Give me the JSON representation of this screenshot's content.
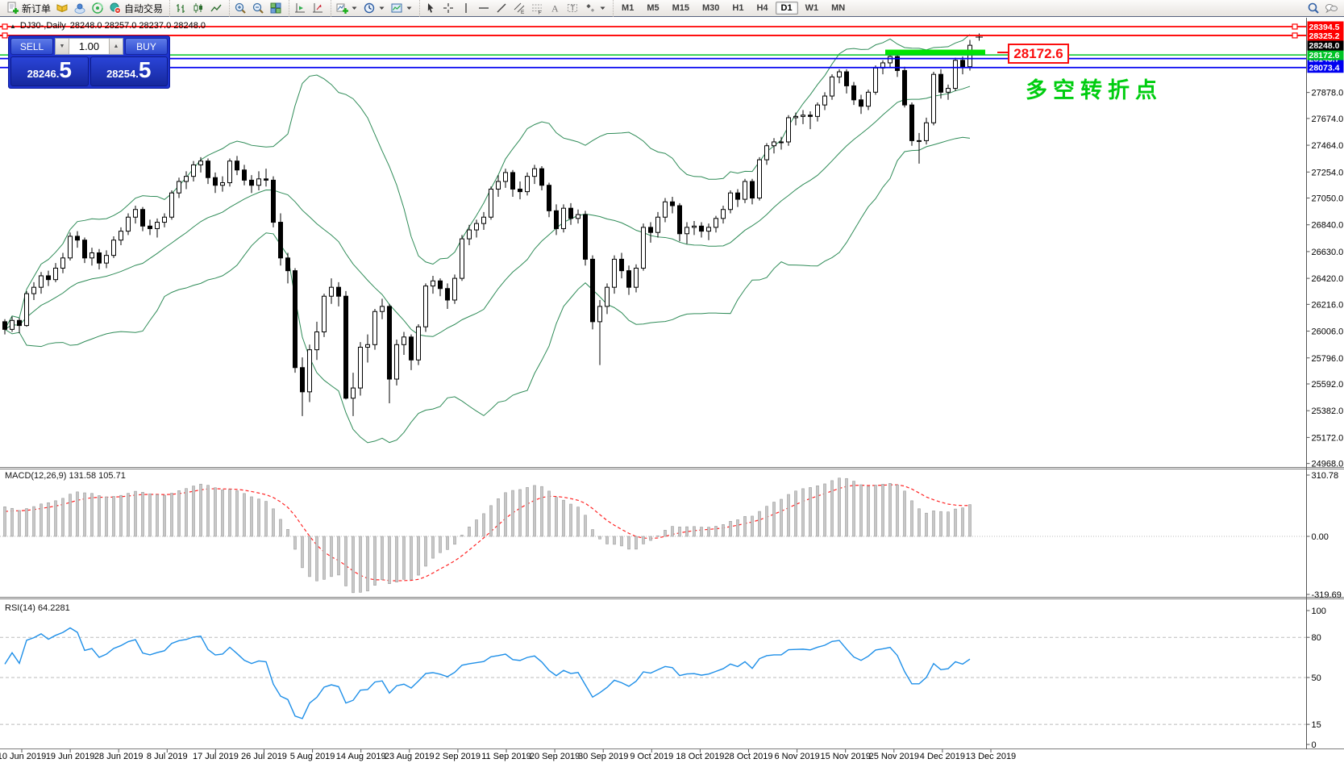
{
  "toolbar": {
    "groups": [
      {
        "name": "trade-group",
        "items": [
          {
            "name": "new-order-button",
            "icon": "new-order",
            "label": "新订单"
          },
          {
            "name": "market-watch-button",
            "icon": "book"
          },
          {
            "name": "profile-button",
            "icon": "cloud-user"
          },
          {
            "name": "signals-button",
            "icon": "radar"
          },
          {
            "name": "autotrading-button",
            "icon": "autotrade",
            "label": "自动交易"
          }
        ]
      },
      {
        "name": "chart-type-group",
        "items": [
          {
            "name": "bar-chart-button",
            "icon": "bar-chart"
          },
          {
            "name": "candle-chart-button",
            "icon": "candle-chart"
          },
          {
            "name": "line-chart-button",
            "icon": "line-chart"
          }
        ]
      },
      {
        "name": "zoom-group",
        "items": [
          {
            "name": "zoom-in-button",
            "icon": "zoom-in"
          },
          {
            "name": "zoom-out-button",
            "icon": "zoom-out"
          },
          {
            "name": "tile-windows-button",
            "icon": "tile-windows"
          }
        ]
      },
      {
        "name": "shift-group",
        "items": [
          {
            "name": "chart-shift-button",
            "icon": "chart-shift"
          },
          {
            "name": "auto-scroll-button",
            "icon": "chart-forward"
          }
        ]
      },
      {
        "name": "objects-group",
        "items": [
          {
            "name": "indicators-button",
            "icon": "indicators-add",
            "caret": true
          },
          {
            "name": "periods-button",
            "icon": "clock",
            "caret": true
          },
          {
            "name": "templates-button",
            "icon": "template-chart",
            "caret": true
          }
        ]
      },
      {
        "name": "drawing-group",
        "items": [
          {
            "name": "cursor-button",
            "icon": "cursor"
          },
          {
            "name": "crosshair-button",
            "icon": "crosshair"
          },
          {
            "name": "vertical-line-button",
            "icon": "vline"
          },
          {
            "name": "horizontal-line-button",
            "icon": "hline"
          },
          {
            "name": "trendline-button",
            "icon": "trendline"
          },
          {
            "name": "channel-button",
            "icon": "channel"
          },
          {
            "name": "fibonacci-button",
            "icon": "fibonacci"
          },
          {
            "name": "text-button",
            "icon": "text-a"
          },
          {
            "name": "text-label-button",
            "icon": "text-label"
          },
          {
            "name": "shapes-button",
            "icon": "shapes",
            "caret": true
          }
        ]
      }
    ],
    "timeframes": [
      "M1",
      "M5",
      "M15",
      "M30",
      "H1",
      "H4",
      "D1",
      "W1",
      "MN"
    ],
    "active_timeframe": "D1",
    "right_items": [
      {
        "name": "search-button",
        "icon": "search"
      },
      {
        "name": "chat-button",
        "icon": "chat"
      }
    ]
  },
  "title_bar": {
    "symbol": "DJ30-,Daily",
    "ohlc": "28248.0 28257.0 28237.0 28248.0"
  },
  "trade_panel": {
    "sell_label": "SELL",
    "buy_label": "BUY",
    "volume": "1.00",
    "sell_small": "28246.",
    "sell_big": "5",
    "buy_small": "28254.",
    "buy_big": "5"
  },
  "annotations": {
    "price_callout": "28172.6",
    "turning_point": "多空转折点"
  },
  "indicators": {
    "macd_label": "MACD(12,26,9) 131.58 105.71",
    "rsi_label": "RSI(14) 64.2281"
  },
  "chart_data": {
    "type": "candlestick",
    "title": "DJ30-,Daily",
    "ohlc_display": [
      28248.0,
      28257.0,
      28237.0,
      28248.0
    ],
    "x_labels": [
      "10 Jun 2019",
      "19 Jun 2019",
      "28 Jun 2019",
      "8 Jul 2019",
      "17 Jul 2019",
      "26 Jul 2019",
      "5 Aug 2019",
      "14 Aug 2019",
      "23 Aug 2019",
      "2 Sep 2019",
      "11 Sep 2019",
      "20 Sep 2019",
      "30 Sep 2019",
      "9 Oct 2019",
      "18 Oct 2019",
      "28 Oct 2019",
      "6 Nov 2019",
      "15 Nov 2019",
      "25 Nov 2019",
      "4 Dec 2019",
      "13 Dec 2019"
    ],
    "y_ticks": [
      27878.0,
      27674.0,
      27464.0,
      27254.0,
      27050.0,
      26840.0,
      26630.0,
      26420.0,
      26216.0,
      26006.0,
      25796.0,
      25592.0,
      25382.0,
      25172.0,
      24968.0
    ],
    "ylim": [
      24941,
      28464
    ],
    "grid": false,
    "candles": [
      [
        26080,
        26100,
        25980,
        26020
      ],
      [
        26020,
        26120,
        26000,
        26090
      ],
      [
        26090,
        26110,
        25990,
        26050
      ],
      [
        26050,
        26320,
        26040,
        26300
      ],
      [
        26300,
        26390,
        26250,
        26350
      ],
      [
        26350,
        26470,
        26300,
        26440
      ],
      [
        26440,
        26480,
        26360,
        26410
      ],
      [
        26410,
        26540,
        26390,
        26500
      ],
      [
        26500,
        26620,
        26460,
        26580
      ],
      [
        26580,
        26780,
        26560,
        26750
      ],
      [
        26750,
        26790,
        26660,
        26720
      ],
      [
        26720,
        26740,
        26540,
        26580
      ],
      [
        26580,
        26660,
        26520,
        26620
      ],
      [
        26620,
        26650,
        26490,
        26540
      ],
      [
        26540,
        26640,
        26500,
        26600
      ],
      [
        26600,
        26750,
        26580,
        26720
      ],
      [
        26720,
        26820,
        26680,
        26790
      ],
      [
        26790,
        26930,
        26760,
        26900
      ],
      [
        26900,
        26990,
        26850,
        26960
      ],
      [
        26960,
        26980,
        26790,
        26830
      ],
      [
        26830,
        26880,
        26760,
        26810
      ],
      [
        26810,
        26890,
        26740,
        26860
      ],
      [
        26860,
        26930,
        26820,
        26900
      ],
      [
        26900,
        27110,
        26880,
        27090
      ],
      [
        27090,
        27210,
        27050,
        27180
      ],
      [
        27180,
        27260,
        27120,
        27220
      ],
      [
        27220,
        27340,
        27180,
        27310
      ],
      [
        27310,
        27370,
        27250,
        27340
      ],
      [
        27340,
        27360,
        27160,
        27210
      ],
      [
        27210,
        27250,
        27090,
        27150
      ],
      [
        27150,
        27220,
        27100,
        27170
      ],
      [
        27170,
        27360,
        27140,
        27340
      ],
      [
        27340,
        27380,
        27230,
        27270
      ],
      [
        27270,
        27310,
        27150,
        27190
      ],
      [
        27190,
        27230,
        27090,
        27150
      ],
      [
        27150,
        27260,
        27110,
        27200
      ],
      [
        27200,
        27280,
        27140,
        27190
      ],
      [
        27190,
        27220,
        26820,
        26860
      ],
      [
        26860,
        26930,
        26520,
        26580
      ],
      [
        26580,
        26620,
        26380,
        26480
      ],
      [
        26480,
        26500,
        25680,
        25720
      ],
      [
        25720,
        25800,
        25340,
        25530
      ],
      [
        25530,
        25900,
        25450,
        25860
      ],
      [
        25860,
        26080,
        25780,
        26000
      ],
      [
        26000,
        26300,
        25960,
        26280
      ],
      [
        26280,
        26420,
        26220,
        26350
      ],
      [
        26350,
        26390,
        26200,
        26280
      ],
      [
        26280,
        26320,
        25470,
        25480
      ],
      [
        25480,
        25680,
        25340,
        25560
      ],
      [
        25560,
        25920,
        25500,
        25880
      ],
      [
        25880,
        25980,
        25760,
        25900
      ],
      [
        25900,
        26180,
        25860,
        26160
      ],
      [
        26160,
        26260,
        26100,
        26200
      ],
      [
        26200,
        26220,
        25440,
        25630
      ],
      [
        25630,
        25940,
        25580,
        25900
      ],
      [
        25900,
        26000,
        25820,
        25960
      ],
      [
        25960,
        25980,
        25700,
        25780
      ],
      [
        25780,
        26060,
        25740,
        26040
      ],
      [
        26040,
        26380,
        26000,
        26360
      ],
      [
        26360,
        26440,
        26300,
        26400
      ],
      [
        26400,
        26420,
        26280,
        26340
      ],
      [
        26340,
        26380,
        26180,
        26250
      ],
      [
        26250,
        26450,
        26220,
        26420
      ],
      [
        26420,
        26760,
        26400,
        26730
      ],
      [
        26730,
        26840,
        26680,
        26800
      ],
      [
        26800,
        26880,
        26740,
        26850
      ],
      [
        26850,
        26940,
        26800,
        26900
      ],
      [
        26900,
        27140,
        26880,
        27120
      ],
      [
        27120,
        27230,
        27060,
        27180
      ],
      [
        27180,
        27280,
        27130,
        27250
      ],
      [
        27250,
        27270,
        27060,
        27120
      ],
      [
        27120,
        27180,
        27040,
        27100
      ],
      [
        27100,
        27250,
        27070,
        27220
      ],
      [
        27220,
        27310,
        27160,
        27280
      ],
      [
        27280,
        27300,
        27110,
        27150
      ],
      [
        27150,
        27170,
        26900,
        26950
      ],
      [
        26950,
        27000,
        26760,
        26810
      ],
      [
        26810,
        27000,
        26780,
        26970
      ],
      [
        26970,
        27010,
        26840,
        26890
      ],
      [
        26890,
        26960,
        26850,
        26920
      ],
      [
        26920,
        26950,
        26520,
        26570
      ],
      [
        26570,
        26600,
        26020,
        26080
      ],
      [
        26080,
        26250,
        25740,
        26200
      ],
      [
        26200,
        26380,
        26140,
        26350
      ],
      [
        26350,
        26600,
        26300,
        26570
      ],
      [
        26570,
        26620,
        26420,
        26480
      ],
      [
        26480,
        26520,
        26290,
        26350
      ],
      [
        26350,
        26530,
        26310,
        26500
      ],
      [
        26500,
        26850,
        26480,
        26820
      ],
      [
        26820,
        26860,
        26700,
        26780
      ],
      [
        26780,
        26940,
        26740,
        26900
      ],
      [
        26900,
        27050,
        26860,
        27020
      ],
      [
        27020,
        27060,
        26930,
        26990
      ],
      [
        26990,
        27010,
        26710,
        26770
      ],
      [
        26770,
        26860,
        26690,
        26820
      ],
      [
        26820,
        26870,
        26760,
        26830
      ],
      [
        26830,
        26860,
        26740,
        26790
      ],
      [
        26790,
        26850,
        26720,
        26820
      ],
      [
        26820,
        26910,
        26780,
        26890
      ],
      [
        26890,
        26990,
        26850,
        26960
      ],
      [
        26960,
        27110,
        26930,
        27090
      ],
      [
        27090,
        27120,
        26980,
        27040
      ],
      [
        27040,
        27200,
        27010,
        27180
      ],
      [
        27180,
        27200,
        27000,
        27050
      ],
      [
        27050,
        27370,
        27030,
        27350
      ],
      [
        27350,
        27480,
        27310,
        27460
      ],
      [
        27460,
        27520,
        27400,
        27490
      ],
      [
        27490,
        27530,
        27430,
        27490
      ],
      [
        27490,
        27700,
        27460,
        27680
      ],
      [
        27680,
        27720,
        27620,
        27690
      ],
      [
        27690,
        27740,
        27630,
        27700
      ],
      [
        27700,
        27730,
        27590,
        27690
      ],
      [
        27690,
        27800,
        27650,
        27780
      ],
      [
        27780,
        27880,
        27740,
        27850
      ],
      [
        27850,
        28020,
        27820,
        28000
      ],
      [
        28000,
        28060,
        27950,
        28040
      ],
      [
        28040,
        28060,
        27870,
        27930
      ],
      [
        27930,
        27960,
        27780,
        27820
      ],
      [
        27820,
        27860,
        27710,
        27770
      ],
      [
        27770,
        27900,
        27740,
        27880
      ],
      [
        27880,
        28090,
        27860,
        28070
      ],
      [
        28070,
        28130,
        28020,
        28110
      ],
      [
        28110,
        28180,
        28070,
        28160
      ],
      [
        28160,
        28170,
        28000,
        28050
      ],
      [
        28050,
        28080,
        27760,
        27780
      ],
      [
        27780,
        27800,
        27460,
        27500
      ],
      [
        27500,
        27560,
        27320,
        27500
      ],
      [
        27500,
        27680,
        27470,
        27640
      ],
      [
        27640,
        28040,
        27620,
        28020
      ],
      [
        28020,
        28060,
        27830,
        27880
      ],
      [
        27880,
        27940,
        27820,
        27910
      ],
      [
        27910,
        28150,
        27890,
        28130
      ],
      [
        28130,
        28160,
        28020,
        28080
      ],
      [
        28080,
        28290,
        28050,
        28248
      ]
    ],
    "bollinger": {
      "period": 20,
      "deviation": 2,
      "color": "#2e8b57"
    },
    "price_lines": [
      {
        "label": "28394.5",
        "price": 28394.5,
        "color": "#fe0000",
        "kind": "hline",
        "handles": true
      },
      {
        "label": "28325.2",
        "price": 28325.2,
        "color": "#fe0000",
        "kind": "hline",
        "handles": true
      },
      {
        "label": "28143.7",
        "price": 28143.7,
        "color": "#0000f0",
        "kind": "hline"
      },
      {
        "label": "28172.6",
        "price": 28172.6,
        "color": "#00c426",
        "kind": "hline"
      },
      {
        "label": "28248.0",
        "price": 28248.0,
        "color": "#000000",
        "kind": "bid-tag"
      },
      {
        "label": "28073.4",
        "price": 28073.4,
        "color": "#0000f0",
        "kind": "hline"
      }
    ],
    "highlight_segment": {
      "price": 28172.6,
      "color": "#00e500",
      "x_from": 1098,
      "x_to": 1222
    },
    "macd": {
      "params": "12,26,9",
      "main_value": 131.58,
      "signal_value": 105.71,
      "ticks": [
        "310.78",
        "0.00",
        "-319.69"
      ],
      "range": [
        -319.69,
        310.78
      ],
      "histogram_color": "#c8c8c8",
      "signal_color": "#ff2222"
    },
    "rsi": {
      "period": 14,
      "value": 64.2281,
      "ticks": [
        "100",
        "80",
        "50",
        "15",
        "0"
      ],
      "levels": [
        80,
        50,
        15
      ],
      "range": [
        0,
        100
      ],
      "line_color": "#1e8fe8"
    }
  }
}
